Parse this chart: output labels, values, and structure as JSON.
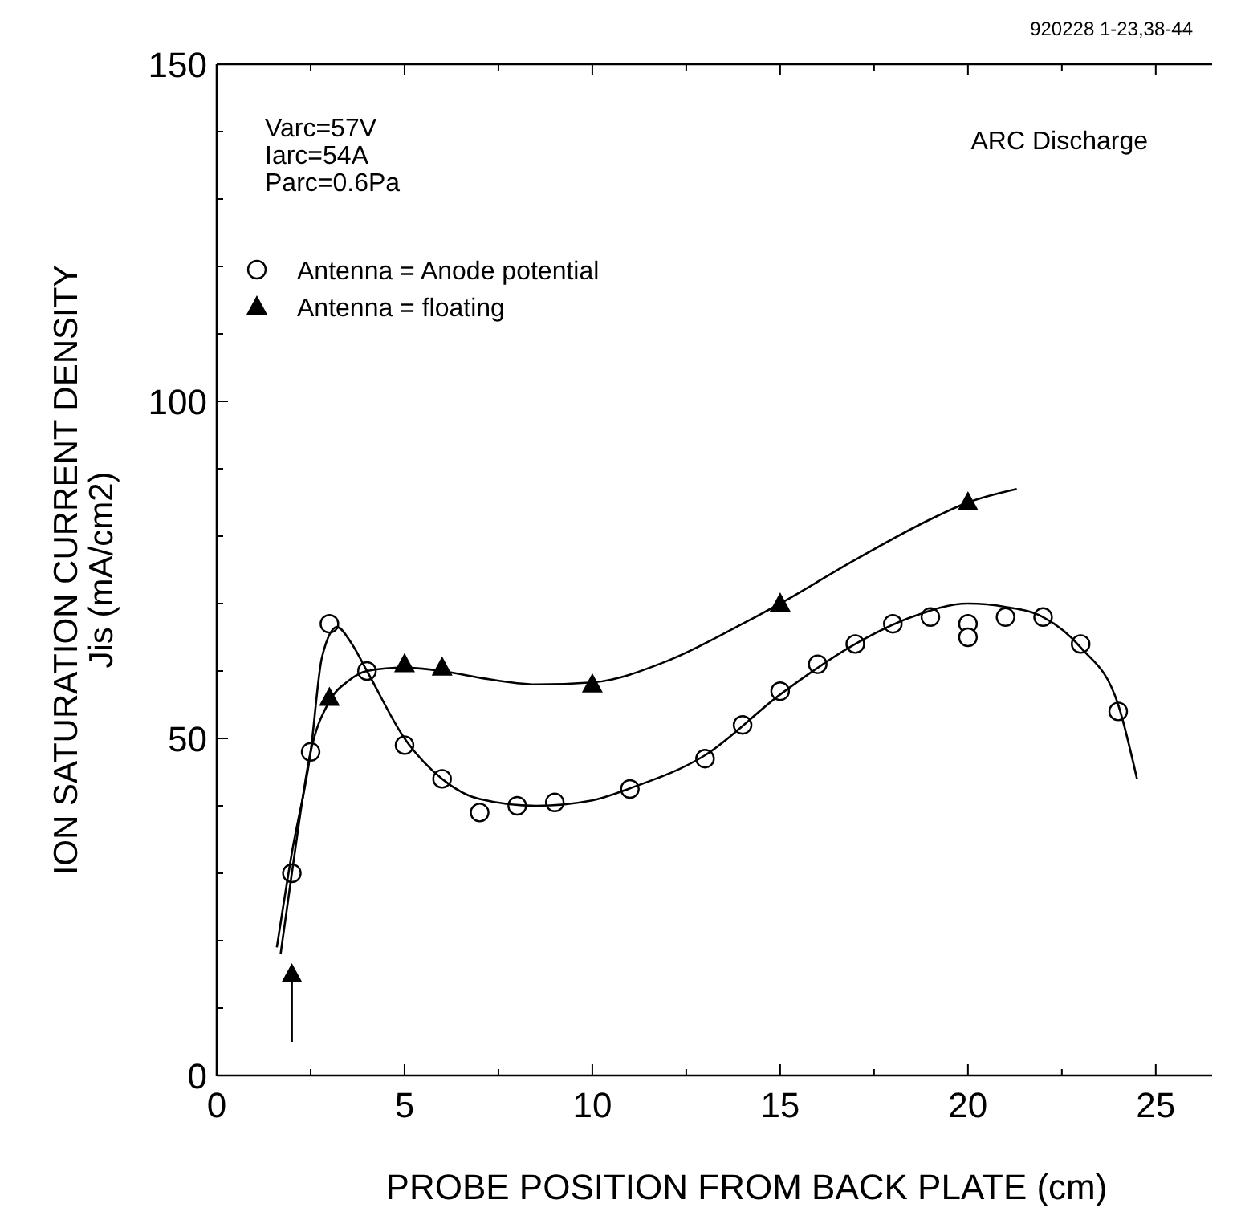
{
  "chart_data": {
    "type": "scatter",
    "xlabel": "PROBE POSITION FROM BACK PLATE  (cm)",
    "ylabel": "ION SATURATION CURRENT DENSITY\nJis (mA/cm2)",
    "annotations": [
      "920228  1-23,38-44",
      "Varc=57V",
      "Iarc=54A",
      "Parc=0.6Pa",
      "ARC Discharge"
    ],
    "xlim": [
      0,
      26.5
    ],
    "ylim": [
      0,
      150
    ],
    "xticks": [
      0,
      {
        "value": 2.5,
        "label": null
      },
      5,
      {
        "value": 7.5,
        "label": null
      },
      10,
      {
        "value": 12.5,
        "label": null
      },
      15,
      {
        "value": 17.5,
        "label": null
      },
      20,
      {
        "value": 22.5,
        "label": null
      },
      25
    ],
    "yticks": [
      0,
      {
        "value": 10,
        "label": null
      },
      {
        "value": 20,
        "label": null
      },
      {
        "value": 30,
        "label": null
      },
      {
        "value": 40,
        "label": null
      },
      50,
      {
        "value": 60,
        "label": null
      },
      {
        "value": 70,
        "label": null
      },
      {
        "value": 80,
        "label": null
      },
      {
        "value": 90,
        "label": null
      },
      100,
      {
        "value": 110,
        "label": null
      },
      {
        "value": 120,
        "label": null
      },
      {
        "value": 130,
        "label": null
      },
      {
        "value": 140,
        "label": null
      },
      150
    ],
    "grid": false,
    "legend": "top left",
    "series": [
      {
        "name": "Antenna = Anode potential",
        "marker": "circle",
        "color": "#000000",
        "x": [
          2,
          2.5,
          3,
          4,
          5,
          6,
          7,
          8,
          9,
          11,
          13,
          14,
          15,
          16,
          17,
          18,
          19,
          20,
          20,
          21,
          22,
          23,
          24
        ],
        "values": [
          30,
          48,
          67,
          60,
          49,
          44,
          39,
          40,
          40.5,
          42.5,
          47,
          52,
          57,
          61,
          64,
          67,
          68,
          67,
          65,
          68,
          68,
          64,
          54
        ]
      },
      {
        "name": "Antenna = floating",
        "marker": "triangle",
        "color": "#000000",
        "x": [
          2,
          3,
          5,
          6,
          10,
          15,
          20
        ],
        "values": [
          15,
          56,
          61,
          60.5,
          58,
          70,
          85
        ],
        "errors": [
          [
            5,
            15
          ],
          null,
          null,
          null,
          null,
          null,
          null
        ]
      },
      {
        "type": "line",
        "marker": "none",
        "color": "#000000",
        "x": [
          1.6,
          2,
          2.5,
          2.8,
          3.2,
          3.6,
          4,
          5,
          6,
          7,
          8.5,
          10,
          11,
          13,
          15,
          17,
          18.5,
          20,
          21,
          22,
          23,
          24,
          24.5
        ],
        "values": [
          19,
          33,
          48,
          62,
          66.5,
          64,
          60,
          50,
          44,
          41,
          40,
          40.8,
          42.6,
          47.5,
          56.5,
          64,
          68,
          70,
          69.5,
          68,
          63.5,
          55,
          44
        ]
      },
      {
        "type": "line",
        "marker": "none",
        "color": "#000000",
        "x": [
          1.7,
          2,
          2.5,
          3,
          3.5,
          4,
          5,
          6,
          7,
          8.5,
          10,
          12,
          14,
          15,
          17,
          19,
          20,
          21.3
        ],
        "values": [
          18,
          30,
          48,
          55.5,
          58.5,
          60,
          60.5,
          60,
          59,
          58,
          58.3,
          61.5,
          67,
          70,
          76.5,
          82.5,
          85,
          87
        ]
      }
    ]
  }
}
